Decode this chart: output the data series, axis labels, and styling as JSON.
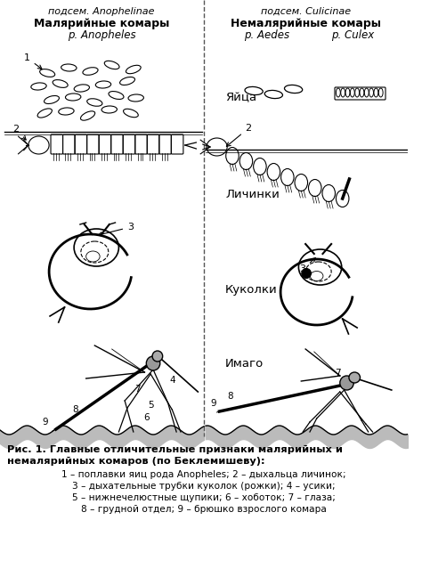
{
  "title_left_sub": "подсем. Anophelinae",
  "title_left_bold": "Малярийные комары",
  "title_left_italic": "р. Anopheles",
  "title_right_sub": "подсем. Culicinae",
  "title_right_bold": "Немалярийные комары",
  "title_right_italic1": "р. Aedes",
  "title_right_italic2": "р. Culex",
  "label_eggs": "Яйца",
  "label_larvae": "Личинки",
  "label_pupae": "Куколки",
  "label_imago": "Имаго",
  "caption_bold1": "Рис. 1. Главные отличительные признаки малярийных и",
  "caption_bold2": "немалярийных комаров (по Беклемишеву):",
  "caption_line1": "1 – поплавки яиц рода Anopheles; 2 – дыхальца личинок;",
  "caption_line2": "3 – дыхательные трубки куколок (рожки); 4 – усики;",
  "caption_line3": "5 – нижнечелюстные щупики; 6 – хоботок; 7 – глаза;",
  "caption_line4": "8 – грудной отдел; 9 – брюшко взрослого комара",
  "bg_color": "#ffffff",
  "text_color": "#000000",
  "divider_color": "#555555",
  "fig_width": 4.74,
  "fig_height": 6.3,
  "dpi": 100
}
